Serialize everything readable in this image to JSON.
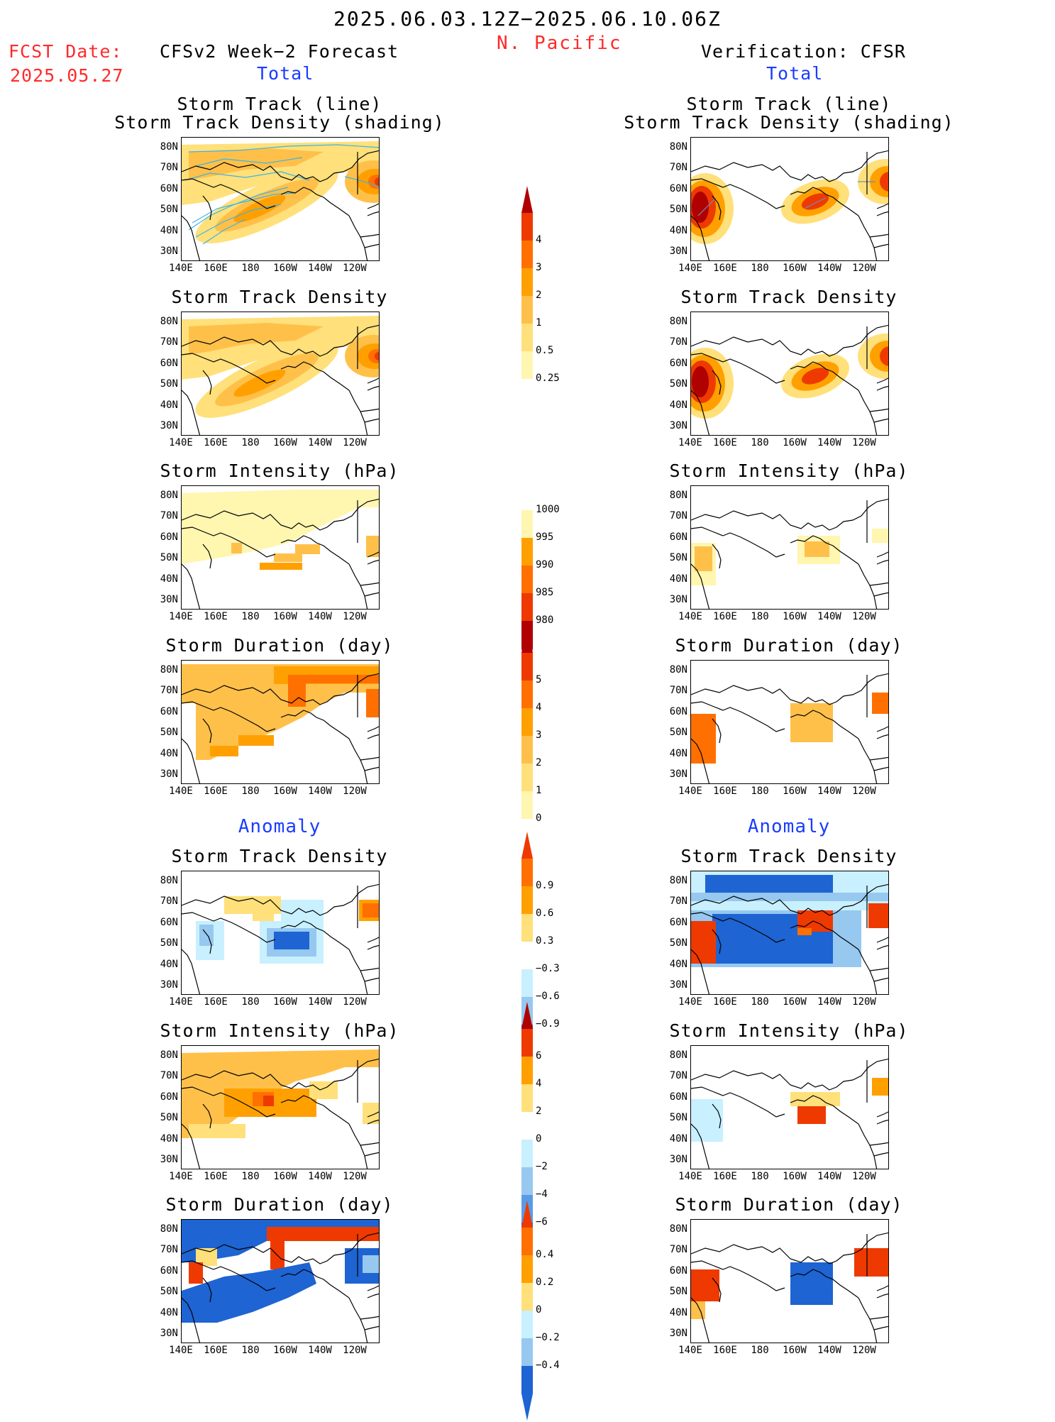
{
  "header": {
    "date_range": "2025.06.03.12Z−2025.06.10.06Z",
    "region": "N. Pacific",
    "fcst_label": "FCST Date:",
    "fcst_date": "2025.05.27",
    "left_title": "CFSv2 Week−2 Forecast",
    "right_title": "Verification: CFSR",
    "left_sub": "Total",
    "right_sub": "Total",
    "anomaly_left": "Anomaly",
    "anomaly_right": "Anomaly"
  },
  "panel_titles": {
    "track_line": "Storm Track (line)",
    "track_density_shading": "Storm Track Density (shading)",
    "track_density": "Storm Track Density",
    "intensity": "Storm Intensity (hPa)",
    "duration": "Storm Duration (day)"
  },
  "axes": {
    "y_ticks": [
      "80N",
      "70N",
      "60N",
      "50N",
      "40N",
      "30N"
    ],
    "x_ticks": [
      "140E",
      "160E",
      "180",
      "160W",
      "140W",
      "120W"
    ]
  },
  "colorbars": {
    "density_total": [
      "4",
      "3",
      "2",
      "1",
      "0.5",
      "0.25"
    ],
    "intensity_total": [
      "1000",
      "995",
      "990",
      "985",
      "980"
    ],
    "duration_total": [
      "5",
      "4",
      "3",
      "2",
      "1",
      "0"
    ],
    "density_anom": [
      "0.9",
      "0.6",
      "0.3",
      "−0.3",
      "−0.6",
      "−0.9"
    ],
    "intensity_anom": [
      "6",
      "4",
      "2",
      "0",
      "−2",
      "−4",
      "−6"
    ],
    "duration_anom": [
      "0.4",
      "0.2",
      "0",
      "−0.2",
      "−0.4"
    ]
  },
  "colors": {
    "pale_yellow": "#fff6b0",
    "yellow": "#ffe07a",
    "light_orange": "#ffc04a",
    "orange": "#ffa000",
    "dark_orange": "#ff7000",
    "red": "#ee3a00",
    "dark_red": "#b00000",
    "light_cyan": "#c8f0ff",
    "light_blue": "#96c8f0",
    "mid_blue": "#5a9be6",
    "blue": "#1e64d2",
    "track_line": "#3cb4e6",
    "title_red": "#ff2a2a",
    "title_blue": "#1a3cff"
  }
}
